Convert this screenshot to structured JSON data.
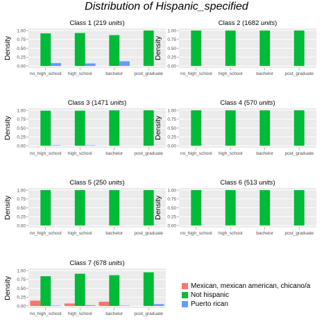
{
  "title": "Distribution of Hispanic_specified",
  "chart_data": {
    "type": "bar",
    "ylabel": "Density",
    "ylim": [
      0,
      1.0
    ],
    "yticks": [
      "0.00",
      "0.25",
      "0.50",
      "0.75",
      "1.00"
    ],
    "categories": [
      "no_high_school",
      "high_school",
      "bachelor",
      "post_graduate"
    ],
    "grid": true,
    "legend_position": "bottom-right",
    "series_names": [
      "Mexican, mexican american, chicano/a",
      "Not hispanic",
      "Puerto rican"
    ],
    "colors": {
      "mexican": "#F8766D",
      "not_hispanic": "#00BA38",
      "puerto_rican": "#619CFF",
      "panel_bg": "#EBEBEB",
      "grid": "#FFFFFF"
    },
    "panels": [
      {
        "title": "Class 1 (219 ",
        "units": "units",
        "close": ")",
        "series": [
          {
            "name": "Mexican, mexican american, chicano/a",
            "values": [
              0,
              0,
              0,
              0
            ]
          },
          {
            "name": "Not hispanic",
            "values": [
              0.92,
              0.93,
              0.87,
              1.0
            ]
          },
          {
            "name": "Puerto rican",
            "values": [
              0.08,
              0.07,
              0.13,
              0
            ]
          }
        ]
      },
      {
        "title": "Class 2 (1682 ",
        "units": "units",
        "close": ")",
        "series": [
          {
            "name": "Mexican, mexican american, chicano/a",
            "values": [
              0,
              0,
              0,
              0
            ]
          },
          {
            "name": "Not hispanic",
            "values": [
              1.0,
              1.0,
              1.0,
              1.0
            ]
          },
          {
            "name": "Puerto rican",
            "values": [
              0,
              0,
              0,
              0
            ]
          }
        ]
      },
      {
        "title": "Class 3 (1471 ",
        "units": "units",
        "close": ")",
        "series": [
          {
            "name": "Mexican, mexican american, chicano/a",
            "values": [
              0,
              0,
              0,
              0
            ]
          },
          {
            "name": "Not hispanic",
            "values": [
              0.99,
              0.99,
              1.0,
              1.0
            ]
          },
          {
            "name": "Puerto rican",
            "values": [
              0.01,
              0.01,
              0,
              0
            ]
          }
        ]
      },
      {
        "title": "Class 4 (570 ",
        "units": "units",
        "close": ")",
        "series": [
          {
            "name": "Mexican, mexican american, chicano/a",
            "values": [
              0,
              0,
              0,
              0
            ]
          },
          {
            "name": "Not hispanic",
            "values": [
              1.0,
              1.0,
              1.0,
              1.0
            ]
          },
          {
            "name": "Puerto rican",
            "values": [
              0,
              0,
              0,
              0
            ]
          }
        ]
      },
      {
        "title": "Class 5 (250 ",
        "units": "units",
        "close": ")",
        "series": [
          {
            "name": "Mexican, mexican american, chicano/a",
            "values": [
              0,
              0,
              0,
              0
            ]
          },
          {
            "name": "Not hispanic",
            "values": [
              1.0,
              1.0,
              1.0,
              1.0
            ]
          },
          {
            "name": "Puerto rican",
            "values": [
              0,
              0,
              0,
              0
            ]
          }
        ]
      },
      {
        "title": "Class 6 (513 ",
        "units": "units",
        "close": ")",
        "series": [
          {
            "name": "Mexican, mexican american, chicano/a",
            "values": [
              0,
              0,
              0,
              0
            ]
          },
          {
            "name": "Not hispanic",
            "values": [
              1.0,
              1.0,
              1.0,
              1.0
            ]
          },
          {
            "name": "Puerto rican",
            "values": [
              0,
              0,
              0,
              0
            ]
          }
        ]
      },
      {
        "title": "Class 7 (678 ",
        "units": "units",
        "close": ")",
        "series": [
          {
            "name": "Mexican, mexican american, chicano/a",
            "values": [
              0.15,
              0.07,
              0.12,
              0
            ]
          },
          {
            "name": "Not hispanic",
            "values": [
              0.84,
              0.91,
              0.87,
              0.95
            ]
          },
          {
            "name": "Puerto rican",
            "values": [
              0.01,
              0.02,
              0.01,
              0.05
            ]
          }
        ]
      }
    ]
  }
}
